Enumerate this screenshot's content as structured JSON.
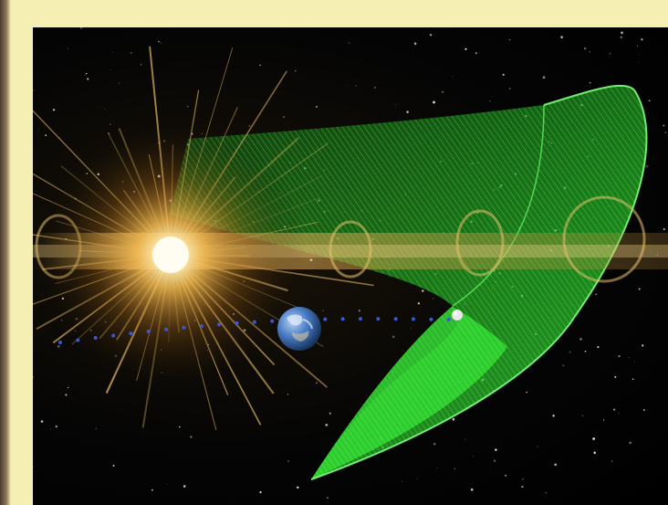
{
  "image": {
    "subject": "sun-earth-halo-orbit-illustration",
    "colors": {
      "frame": "#f6efb4",
      "space": "#000000",
      "sun_core": "#fff6d8",
      "sun_glow": "#e0a63a",
      "orbit_surface": "#2fd12f",
      "earth_ocean": "#3f6fbf",
      "trajectory_dots": "#3b57d6"
    },
    "elements": [
      "sun",
      "sun-rays",
      "earth",
      "halo-orbit-surface",
      "lagrange-spacecraft",
      "trajectory-dots",
      "starfield"
    ]
  }
}
